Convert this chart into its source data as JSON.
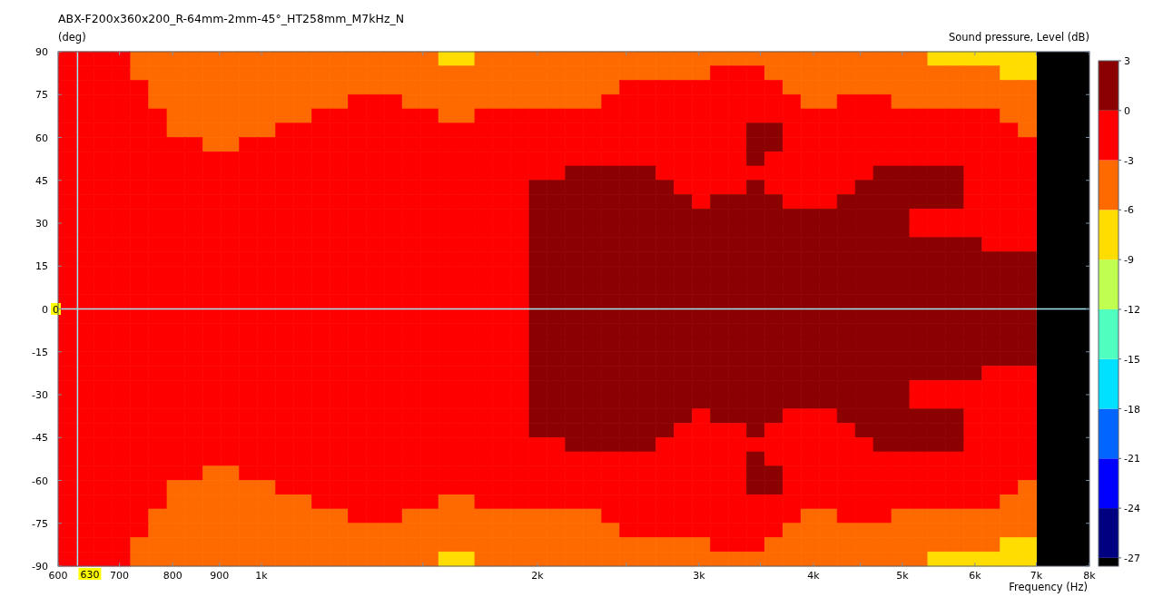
{
  "chart_data": {
    "type": "heatmap",
    "title": "ABX-F200x360x200_R-64mm-2mm-45°_HT258mm_M7kHz_N",
    "xlabel": "Frequency (Hz)",
    "ylabel": "(deg)",
    "clabel": "Sound pressure, Level (dB)",
    "log": "x",
    "xlim": [
      600,
      8000
    ],
    "xticks": [
      600,
      700,
      800,
      900,
      {
        "value": 1000,
        "label": "1k"
      },
      {
        "value": 1500,
        "label": null
      },
      {
        "value": 2000,
        "label": "2k"
      },
      {
        "value": 2500,
        "label": null
      },
      {
        "value": 3000,
        "label": "3k"
      },
      {
        "value": 3500,
        "label": null
      },
      {
        "value": 4000,
        "label": "4k"
      },
      {
        "value": 4500,
        "label": null
      },
      {
        "value": 5000,
        "label": "5k"
      },
      {
        "value": 6000,
        "label": "6k"
      },
      {
        "value": 7000,
        "label": "7k"
      },
      {
        "value": 8000,
        "label": "8k"
      }
    ],
    "ylim": [
      -90,
      90
    ],
    "yticks": [
      -90,
      -75,
      -60,
      -45,
      -30,
      -15,
      0,
      15,
      30,
      45,
      60,
      75,
      90
    ],
    "clim": [
      -27.5,
      3
    ],
    "cticks": [
      -27,
      -24,
      -21,
      -18,
      -15,
      -12,
      -9,
      -6,
      -3,
      0,
      3
    ],
    "ref_lines": [
      {
        "axis": "y",
        "value": 0,
        "label": "0",
        "color": "#9fe8ef"
      },
      {
        "axis": "x",
        "value": 630,
        "label": "630",
        "color": "#9fe8ef"
      }
    ],
    "x": [
      614,
      642,
      672,
      704,
      736,
      771,
      807,
      844,
      883,
      924,
      968,
      1013,
      1060,
      1109,
      1161,
      1215,
      1271,
      1330,
      1392,
      1457,
      1525,
      1596,
      1670,
      1748,
      1829,
      1915,
      2004,
      2097,
      2195,
      2297,
      2404,
      2516,
      2633,
      2755,
      2884,
      3018,
      3158,
      3305,
      3459,
      3620,
      3789,
      3965,
      4150,
      4343,
      4545,
      4757,
      4978,
      5210,
      5453,
      5707,
      5972,
      6250,
      6541,
      6846
    ],
    "cells": [
      [
        -1.5,
        -1.5,
        -1.5,
        -1.5,
        -4.5,
        -4.5,
        -4.5,
        -4.5,
        -4.5,
        -4.5,
        -4.5,
        -4.5,
        -4.5,
        -4.5,
        -4.5,
        -4.5,
        -4.5,
        -4.5,
        -4.5,
        -4.5,
        -4.5,
        -7.5,
        -7.5,
        -4.5,
        -4.5,
        -4.5,
        -4.5,
        -4.5,
        -4.5,
        -4.5,
        -4.5,
        -4.5,
        -4.5,
        -4.5,
        -4.5,
        -4.5,
        -4.5,
        -4.5,
        -4.5,
        -4.5,
        -4.5,
        -4.5,
        -4.5,
        -4.5,
        -4.5,
        -4.5,
        -4.5,
        -4.5,
        -7.5,
        -7.5,
        -7.5,
        -7.5,
        -7.5,
        -7.5
      ],
      [
        -1.5,
        -1.5,
        -1.5,
        -1.5,
        -4.5,
        -4.5,
        -4.5,
        -4.5,
        -4.5,
        -4.5,
        -4.5,
        -4.5,
        -4.5,
        -4.5,
        -4.5,
        -4.5,
        -4.5,
        -4.5,
        -4.5,
        -4.5,
        -4.5,
        -4.5,
        -4.5,
        -4.5,
        -4.5,
        -4.5,
        -4.5,
        -4.5,
        -4.5,
        -4.5,
        -4.5,
        -4.5,
        -4.5,
        -4.5,
        -4.5,
        -4.5,
        -1.5,
        -1.5,
        -1.5,
        -4.5,
        -4.5,
        -4.5,
        -4.5,
        -4.5,
        -4.5,
        -4.5,
        -4.5,
        -4.5,
        -4.5,
        -4.5,
        -4.5,
        -4.5,
        -7.5,
        -7.5
      ],
      [
        -1.5,
        -1.5,
        -1.5,
        -1.5,
        -1.5,
        -4.5,
        -4.5,
        -4.5,
        -4.5,
        -4.5,
        -4.5,
        -4.5,
        -4.5,
        -4.5,
        -4.5,
        -4.5,
        -4.5,
        -4.5,
        -4.5,
        -4.5,
        -4.5,
        -4.5,
        -4.5,
        -4.5,
        -4.5,
        -4.5,
        -4.5,
        -4.5,
        -4.5,
        -4.5,
        -4.5,
        -1.5,
        -1.5,
        -1.5,
        -1.5,
        -1.5,
        -1.5,
        -1.5,
        -1.5,
        -1.5,
        -4.5,
        -4.5,
        -4.5,
        -4.5,
        -4.5,
        -4.5,
        -4.5,
        -4.5,
        -4.5,
        -4.5,
        -4.5,
        -4.5,
        -4.5,
        -4.5
      ],
      [
        -1.5,
        -1.5,
        -1.5,
        -1.5,
        -1.5,
        -4.5,
        -4.5,
        -4.5,
        -4.5,
        -4.5,
        -4.5,
        -4.5,
        -4.5,
        -4.5,
        -4.5,
        -4.5,
        -1.5,
        -1.5,
        -1.5,
        -4.5,
        -4.5,
        -4.5,
        -4.5,
        -4.5,
        -4.5,
        -4.5,
        -4.5,
        -4.5,
        -4.5,
        -4.5,
        -1.5,
        -1.5,
        -1.5,
        -1.5,
        -1.5,
        -1.5,
        -1.5,
        -1.5,
        -1.5,
        -1.5,
        -1.5,
        -4.5,
        -4.5,
        -1.5,
        -1.5,
        -1.5,
        -4.5,
        -4.5,
        -4.5,
        -4.5,
        -4.5,
        -4.5,
        -4.5,
        -4.5
      ],
      [
        -1.5,
        -1.5,
        -1.5,
        -1.5,
        -1.5,
        -1.5,
        -4.5,
        -4.5,
        -4.5,
        -4.5,
        -4.5,
        -4.5,
        -4.5,
        -4.5,
        -1.5,
        -1.5,
        -1.5,
        -1.5,
        -1.5,
        -1.5,
        -1.5,
        -4.5,
        -4.5,
        -1.5,
        -1.5,
        -1.5,
        -1.5,
        -1.5,
        -1.5,
        -1.5,
        -1.5,
        -1.5,
        -1.5,
        -1.5,
        -1.5,
        -1.5,
        -1.5,
        -1.5,
        -1.5,
        -1.5,
        -1.5,
        -1.5,
        -1.5,
        -1.5,
        -1.5,
        -1.5,
        -1.5,
        -1.5,
        -1.5,
        -1.5,
        -1.5,
        -1.5,
        -4.5,
        -4.5
      ],
      [
        -1.5,
        -1.5,
        -1.5,
        -1.5,
        -1.5,
        -1.5,
        -4.5,
        -4.5,
        -4.5,
        -4.5,
        -4.5,
        -4.5,
        -1.5,
        -1.5,
        -1.5,
        -1.5,
        -1.5,
        -1.5,
        -1.5,
        -1.5,
        -1.5,
        -1.5,
        -1.5,
        -1.5,
        -1.5,
        -1.5,
        -1.5,
        -1.5,
        -1.5,
        -1.5,
        -1.5,
        -1.5,
        -1.5,
        -1.5,
        -1.5,
        -1.5,
        -1.5,
        -1.5,
        1.5,
        1.5,
        -1.5,
        -1.5,
        -1.5,
        -1.5,
        -1.5,
        -1.5,
        -1.5,
        -1.5,
        -1.5,
        -1.5,
        -1.5,
        -1.5,
        -1.5,
        -4.5
      ],
      [
        -1.5,
        -1.5,
        -1.5,
        -1.5,
        -1.5,
        -1.5,
        -1.5,
        -1.5,
        -4.5,
        -4.5,
        -1.5,
        -1.5,
        -1.5,
        -1.5,
        -1.5,
        -1.5,
        -1.5,
        -1.5,
        -1.5,
        -1.5,
        -1.5,
        -1.5,
        -1.5,
        -1.5,
        -1.5,
        -1.5,
        -1.5,
        -1.5,
        -1.5,
        -1.5,
        -1.5,
        -1.5,
        -1.5,
        -1.5,
        -1.5,
        -1.5,
        -1.5,
        -1.5,
        1.5,
        1.5,
        -1.5,
        -1.5,
        -1.5,
        -1.5,
        -1.5,
        -1.5,
        -1.5,
        -1.5,
        -1.5,
        -1.5,
        -1.5,
        -1.5,
        -1.5,
        -1.5
      ],
      [
        -1.5,
        -1.5,
        -1.5,
        -1.5,
        -1.5,
        -1.5,
        -1.5,
        -1.5,
        -1.5,
        -1.5,
        -1.5,
        -1.5,
        -1.5,
        -1.5,
        -1.5,
        -1.5,
        -1.5,
        -1.5,
        -1.5,
        -1.5,
        -1.5,
        -1.5,
        -1.5,
        -1.5,
        -1.5,
        -1.5,
        -1.5,
        -1.5,
        -1.5,
        -1.5,
        -1.5,
        -1.5,
        -1.5,
        -1.5,
        -1.5,
        -1.5,
        -1.5,
        -1.5,
        1.5,
        -1.5,
        -1.5,
        -1.5,
        -1.5,
        -1.5,
        -1.5,
        -1.5,
        -1.5,
        -1.5,
        -1.5,
        -1.5,
        -1.5,
        -1.5,
        -1.5,
        -1.5
      ],
      [
        -1.5,
        -1.5,
        -1.5,
        -1.5,
        -1.5,
        -1.5,
        -1.5,
        -1.5,
        -1.5,
        -1.5,
        -1.5,
        -1.5,
        -1.5,
        -1.5,
        -1.5,
        -1.5,
        -1.5,
        -1.5,
        -1.5,
        -1.5,
        -1.5,
        -1.5,
        -1.5,
        -1.5,
        -1.5,
        -1.5,
        -1.5,
        -1.5,
        1.5,
        1.5,
        1.5,
        1.5,
        1.5,
        -1.5,
        -1.5,
        -1.5,
        -1.5,
        -1.5,
        -1.5,
        -1.5,
        -1.5,
        -1.5,
        -1.5,
        -1.5,
        -1.5,
        1.5,
        1.5,
        1.5,
        1.5,
        1.5,
        -1.5,
        -1.5,
        -1.5,
        -1.5
      ],
      [
        -1.5,
        -1.5,
        -1.5,
        -1.5,
        -1.5,
        -1.5,
        -1.5,
        -1.5,
        -1.5,
        -1.5,
        -1.5,
        -1.5,
        -1.5,
        -1.5,
        -1.5,
        -1.5,
        -1.5,
        -1.5,
        -1.5,
        -1.5,
        -1.5,
        -1.5,
        -1.5,
        -1.5,
        -1.5,
        -1.5,
        1.5,
        1.5,
        1.5,
        1.5,
        1.5,
        1.5,
        1.5,
        1.5,
        -1.5,
        -1.5,
        -1.5,
        -1.5,
        1.5,
        -1.5,
        -1.5,
        -1.5,
        -1.5,
        -1.5,
        1.5,
        1.5,
        1.5,
        1.5,
        1.5,
        1.5,
        -1.5,
        -1.5,
        -1.5,
        -1.5
      ],
      [
        -1.5,
        -1.5,
        -1.5,
        -1.5,
        -1.5,
        -1.5,
        -1.5,
        -1.5,
        -1.5,
        -1.5,
        -1.5,
        -1.5,
        -1.5,
        -1.5,
        -1.5,
        -1.5,
        -1.5,
        -1.5,
        -1.5,
        -1.5,
        -1.5,
        -1.5,
        -1.5,
        -1.5,
        -1.5,
        -1.5,
        1.5,
        1.5,
        1.5,
        1.5,
        1.5,
        1.5,
        1.5,
        1.5,
        1.5,
        -1.5,
        1.5,
        1.5,
        1.5,
        1.5,
        -1.5,
        -1.5,
        -1.5,
        1.5,
        1.5,
        1.5,
        1.5,
        1.5,
        1.5,
        1.5,
        -1.5,
        -1.5,
        -1.5,
        -1.5
      ],
      [
        -1.5,
        -1.5,
        -1.5,
        -1.5,
        -1.5,
        -1.5,
        -1.5,
        -1.5,
        -1.5,
        -1.5,
        -1.5,
        -1.5,
        -1.5,
        -1.5,
        -1.5,
        -1.5,
        -1.5,
        -1.5,
        -1.5,
        -1.5,
        -1.5,
        -1.5,
        -1.5,
        -1.5,
        -1.5,
        -1.5,
        1.5,
        1.5,
        1.5,
        1.5,
        1.5,
        1.5,
        1.5,
        1.5,
        1.5,
        1.5,
        1.5,
        1.5,
        1.5,
        1.5,
        1.5,
        1.5,
        1.5,
        1.5,
        1.5,
        1.5,
        1.5,
        -1.5,
        -1.5,
        -1.5,
        -1.5,
        -1.5,
        -1.5,
        -1.5
      ],
      [
        -1.5,
        -1.5,
        -1.5,
        -1.5,
        -1.5,
        -1.5,
        -1.5,
        -1.5,
        -1.5,
        -1.5,
        -1.5,
        -1.5,
        -1.5,
        -1.5,
        -1.5,
        -1.5,
        -1.5,
        -1.5,
        -1.5,
        -1.5,
        -1.5,
        -1.5,
        -1.5,
        -1.5,
        -1.5,
        -1.5,
        1.5,
        1.5,
        1.5,
        1.5,
        1.5,
        1.5,
        1.5,
        1.5,
        1.5,
        1.5,
        1.5,
        1.5,
        1.5,
        1.5,
        1.5,
        1.5,
        1.5,
        1.5,
        1.5,
        1.5,
        1.5,
        -1.5,
        -1.5,
        -1.5,
        -1.5,
        -1.5,
        -1.5,
        -1.5
      ],
      [
        -1.5,
        -1.5,
        -1.5,
        -1.5,
        -1.5,
        -1.5,
        -1.5,
        -1.5,
        -1.5,
        -1.5,
        -1.5,
        -1.5,
        -1.5,
        -1.5,
        -1.5,
        -1.5,
        -1.5,
        -1.5,
        -1.5,
        -1.5,
        -1.5,
        -1.5,
        -1.5,
        -1.5,
        -1.5,
        -1.5,
        1.5,
        1.5,
        1.5,
        1.5,
        1.5,
        1.5,
        1.5,
        1.5,
        1.5,
        1.5,
        1.5,
        1.5,
        1.5,
        1.5,
        1.5,
        1.5,
        1.5,
        1.5,
        1.5,
        1.5,
        1.5,
        1.5,
        1.5,
        1.5,
        1.5,
        -1.5,
        -1.5,
        -1.5
      ],
      [
        -1.5,
        -1.5,
        -1.5,
        -1.5,
        -1.5,
        -1.5,
        -1.5,
        -1.5,
        -1.5,
        -1.5,
        -1.5,
        -1.5,
        -1.5,
        -1.5,
        -1.5,
        -1.5,
        -1.5,
        -1.5,
        -1.5,
        -1.5,
        -1.5,
        -1.5,
        -1.5,
        -1.5,
        -1.5,
        -1.5,
        1.5,
        1.5,
        1.5,
        1.5,
        1.5,
        1.5,
        1.5,
        1.5,
        1.5,
        1.5,
        1.5,
        1.5,
        1.5,
        1.5,
        1.5,
        1.5,
        1.5,
        1.5,
        1.5,
        1.5,
        1.5,
        1.5,
        1.5,
        1.5,
        1.5,
        1.5,
        1.5,
        1.5
      ],
      [
        -1.5,
        -1.5,
        -1.5,
        -1.5,
        -1.5,
        -1.5,
        -1.5,
        -1.5,
        -1.5,
        -1.5,
        -1.5,
        -1.5,
        -1.5,
        -1.5,
        -1.5,
        -1.5,
        -1.5,
        -1.5,
        -1.5,
        -1.5,
        -1.5,
        -1.5,
        -1.5,
        -1.5,
        -1.5,
        -1.5,
        1.5,
        1.5,
        1.5,
        1.5,
        1.5,
        1.5,
        1.5,
        1.5,
        1.5,
        1.5,
        1.5,
        1.5,
        1.5,
        1.5,
        1.5,
        1.5,
        1.5,
        1.5,
        1.5,
        1.5,
        1.5,
        1.5,
        1.5,
        1.5,
        1.5,
        1.5,
        1.5,
        1.5
      ],
      [
        -1.5,
        -1.5,
        -1.5,
        -1.5,
        -1.5,
        -1.5,
        -1.5,
        -1.5,
        -1.5,
        -1.5,
        -1.5,
        -1.5,
        -1.5,
        -1.5,
        -1.5,
        -1.5,
        -1.5,
        -1.5,
        -1.5,
        -1.5,
        -1.5,
        -1.5,
        -1.5,
        -1.5,
        -1.5,
        -1.5,
        1.5,
        1.5,
        1.5,
        1.5,
        1.5,
        1.5,
        1.5,
        1.5,
        1.5,
        1.5,
        1.5,
        1.5,
        1.5,
        1.5,
        1.5,
        1.5,
        1.5,
        1.5,
        1.5,
        1.5,
        1.5,
        1.5,
        1.5,
        1.5,
        1.5,
        1.5,
        1.5,
        1.5
      ],
      [
        -1.5,
        -1.5,
        -1.5,
        -1.5,
        -1.5,
        -1.5,
        -1.5,
        -1.5,
        -1.5,
        -1.5,
        -1.5,
        -1.5,
        -1.5,
        -1.5,
        -1.5,
        -1.5,
        -1.5,
        -1.5,
        -1.5,
        -1.5,
        -1.5,
        -1.5,
        -1.5,
        -1.5,
        -1.5,
        -1.5,
        1.5,
        1.5,
        1.5,
        1.5,
        1.5,
        1.5,
        1.5,
        1.5,
        1.5,
        1.5,
        1.5,
        1.5,
        1.5,
        1.5,
        1.5,
        1.5,
        1.5,
        1.5,
        1.5,
        1.5,
        1.5,
        1.5,
        1.5,
        1.5,
        1.5,
        1.5,
        1.5,
        1.5
      ],
      [
        -1.5,
        -1.5,
        -1.5,
        -1.5,
        -1.5,
        -1.5,
        -1.5,
        -1.5,
        -1.5,
        -1.5,
        -1.5,
        -1.5,
        -1.5,
        -1.5,
        -1.5,
        -1.5,
        -1.5,
        -1.5,
        -1.5,
        -1.5,
        -1.5,
        -1.5,
        -1.5,
        -1.5,
        -1.5,
        -1.5,
        1.5,
        1.5,
        1.5,
        1.5,
        1.5,
        1.5,
        1.5,
        1.5,
        1.5,
        1.5,
        1.5,
        1.5,
        1.5,
        1.5,
        1.5,
        1.5,
        1.5,
        1.5,
        1.5,
        1.5,
        1.5,
        1.5,
        1.5,
        1.5,
        1.5,
        1.5,
        1.5,
        1.5
      ],
      [
        -1.5,
        -1.5,
        -1.5,
        -1.5,
        -1.5,
        -1.5,
        -1.5,
        -1.5,
        -1.5,
        -1.5,
        -1.5,
        -1.5,
        -1.5,
        -1.5,
        -1.5,
        -1.5,
        -1.5,
        -1.5,
        -1.5,
        -1.5,
        -1.5,
        -1.5,
        -1.5,
        -1.5,
        -1.5,
        -1.5,
        1.5,
        1.5,
        1.5,
        1.5,
        1.5,
        1.5,
        1.5,
        1.5,
        1.5,
        1.5,
        1.5,
        1.5,
        1.5,
        1.5,
        1.5,
        1.5,
        1.5,
        1.5,
        1.5,
        1.5,
        1.5,
        1.5,
        1.5,
        1.5,
        1.5,
        1.5,
        1.5,
        1.5
      ],
      [
        -1.5,
        -1.5,
        -1.5,
        -1.5,
        -1.5,
        -1.5,
        -1.5,
        -1.5,
        -1.5,
        -1.5,
        -1.5,
        -1.5,
        -1.5,
        -1.5,
        -1.5,
        -1.5,
        -1.5,
        -1.5,
        -1.5,
        -1.5,
        -1.5,
        -1.5,
        -1.5,
        -1.5,
        -1.5,
        -1.5,
        1.5,
        1.5,
        1.5,
        1.5,
        1.5,
        1.5,
        1.5,
        1.5,
        1.5,
        1.5,
        1.5,
        1.5,
        1.5,
        1.5,
        1.5,
        1.5,
        1.5,
        1.5,
        1.5,
        1.5,
        1.5,
        1.5,
        1.5,
        1.5,
        1.5,
        1.5,
        1.5,
        1.5
      ],
      [
        -1.5,
        -1.5,
        -1.5,
        -1.5,
        -1.5,
        -1.5,
        -1.5,
        -1.5,
        -1.5,
        -1.5,
        -1.5,
        -1.5,
        -1.5,
        -1.5,
        -1.5,
        -1.5,
        -1.5,
        -1.5,
        -1.5,
        -1.5,
        -1.5,
        -1.5,
        -1.5,
        -1.5,
        -1.5,
        -1.5,
        1.5,
        1.5,
        1.5,
        1.5,
        1.5,
        1.5,
        1.5,
        1.5,
        1.5,
        1.5,
        1.5,
        1.5,
        1.5,
        1.5,
        1.5,
        1.5,
        1.5,
        1.5,
        1.5,
        1.5,
        1.5,
        1.5,
        1.5,
        1.5,
        1.5,
        1.5,
        1.5,
        1.5
      ],
      [
        -1.5,
        -1.5,
        -1.5,
        -1.5,
        -1.5,
        -1.5,
        -1.5,
        -1.5,
        -1.5,
        -1.5,
        -1.5,
        -1.5,
        -1.5,
        -1.5,
        -1.5,
        -1.5,
        -1.5,
        -1.5,
        -1.5,
        -1.5,
        -1.5,
        -1.5,
        -1.5,
        -1.5,
        -1.5,
        -1.5,
        1.5,
        1.5,
        1.5,
        1.5,
        1.5,
        1.5,
        1.5,
        1.5,
        1.5,
        1.5,
        1.5,
        1.5,
        1.5,
        1.5,
        1.5,
        1.5,
        1.5,
        1.5,
        1.5,
        1.5,
        1.5,
        1.5,
        1.5,
        1.5,
        1.5,
        -1.5,
        -1.5,
        -1.5
      ],
      [
        -1.5,
        -1.5,
        -1.5,
        -1.5,
        -1.5,
        -1.5,
        -1.5,
        -1.5,
        -1.5,
        -1.5,
        -1.5,
        -1.5,
        -1.5,
        -1.5,
        -1.5,
        -1.5,
        -1.5,
        -1.5,
        -1.5,
        -1.5,
        -1.5,
        -1.5,
        -1.5,
        -1.5,
        -1.5,
        -1.5,
        1.5,
        1.5,
        1.5,
        1.5,
        1.5,
        1.5,
        1.5,
        1.5,
        1.5,
        1.5,
        1.5,
        1.5,
        1.5,
        1.5,
        1.5,
        1.5,
        1.5,
        1.5,
        1.5,
        1.5,
        1.5,
        -1.5,
        -1.5,
        -1.5,
        -1.5,
        -1.5,
        -1.5,
        -1.5
      ],
      [
        -1.5,
        -1.5,
        -1.5,
        -1.5,
        -1.5,
        -1.5,
        -1.5,
        -1.5,
        -1.5,
        -1.5,
        -1.5,
        -1.5,
        -1.5,
        -1.5,
        -1.5,
        -1.5,
        -1.5,
        -1.5,
        -1.5,
        -1.5,
        -1.5,
        -1.5,
        -1.5,
        -1.5,
        -1.5,
        -1.5,
        1.5,
        1.5,
        1.5,
        1.5,
        1.5,
        1.5,
        1.5,
        1.5,
        1.5,
        1.5,
        1.5,
        1.5,
        1.5,
        1.5,
        1.5,
        1.5,
        1.5,
        1.5,
        1.5,
        1.5,
        1.5,
        -1.5,
        -1.5,
        -1.5,
        -1.5,
        -1.5,
        -1.5,
        -1.5
      ],
      [
        -1.5,
        -1.5,
        -1.5,
        -1.5,
        -1.5,
        -1.5,
        -1.5,
        -1.5,
        -1.5,
        -1.5,
        -1.5,
        -1.5,
        -1.5,
        -1.5,
        -1.5,
        -1.5,
        -1.5,
        -1.5,
        -1.5,
        -1.5,
        -1.5,
        -1.5,
        -1.5,
        -1.5,
        -1.5,
        -1.5,
        1.5,
        1.5,
        1.5,
        1.5,
        1.5,
        1.5,
        1.5,
        1.5,
        1.5,
        -1.5,
        1.5,
        1.5,
        1.5,
        1.5,
        -1.5,
        -1.5,
        -1.5,
        1.5,
        1.5,
        1.5,
        1.5,
        1.5,
        1.5,
        1.5,
        -1.5,
        -1.5,
        -1.5,
        -1.5
      ],
      [
        -1.5,
        -1.5,
        -1.5,
        -1.5,
        -1.5,
        -1.5,
        -1.5,
        -1.5,
        -1.5,
        -1.5,
        -1.5,
        -1.5,
        -1.5,
        -1.5,
        -1.5,
        -1.5,
        -1.5,
        -1.5,
        -1.5,
        -1.5,
        -1.5,
        -1.5,
        -1.5,
        -1.5,
        -1.5,
        -1.5,
        1.5,
        1.5,
        1.5,
        1.5,
        1.5,
        1.5,
        1.5,
        1.5,
        -1.5,
        -1.5,
        -1.5,
        -1.5,
        1.5,
        -1.5,
        -1.5,
        -1.5,
        -1.5,
        -1.5,
        1.5,
        1.5,
        1.5,
        1.5,
        1.5,
        1.5,
        -1.5,
        -1.5,
        -1.5,
        -1.5
      ],
      [
        -1.5,
        -1.5,
        -1.5,
        -1.5,
        -1.5,
        -1.5,
        -1.5,
        -1.5,
        -1.5,
        -1.5,
        -1.5,
        -1.5,
        -1.5,
        -1.5,
        -1.5,
        -1.5,
        -1.5,
        -1.5,
        -1.5,
        -1.5,
        -1.5,
        -1.5,
        -1.5,
        -1.5,
        -1.5,
        -1.5,
        -1.5,
        -1.5,
        1.5,
        1.5,
        1.5,
        1.5,
        1.5,
        -1.5,
        -1.5,
        -1.5,
        -1.5,
        -1.5,
        -1.5,
        -1.5,
        -1.5,
        -1.5,
        -1.5,
        -1.5,
        -1.5,
        1.5,
        1.5,
        1.5,
        1.5,
        1.5,
        -1.5,
        -1.5,
        -1.5,
        -1.5
      ],
      [
        -1.5,
        -1.5,
        -1.5,
        -1.5,
        -1.5,
        -1.5,
        -1.5,
        -1.5,
        -1.5,
        -1.5,
        -1.5,
        -1.5,
        -1.5,
        -1.5,
        -1.5,
        -1.5,
        -1.5,
        -1.5,
        -1.5,
        -1.5,
        -1.5,
        -1.5,
        -1.5,
        -1.5,
        -1.5,
        -1.5,
        -1.5,
        -1.5,
        -1.5,
        -1.5,
        -1.5,
        -1.5,
        -1.5,
        -1.5,
        -1.5,
        -1.5,
        -1.5,
        -1.5,
        1.5,
        -1.5,
        -1.5,
        -1.5,
        -1.5,
        -1.5,
        -1.5,
        -1.5,
        -1.5,
        -1.5,
        -1.5,
        -1.5,
        -1.5,
        -1.5,
        -1.5,
        -1.5
      ],
      [
        -1.5,
        -1.5,
        -1.5,
        -1.5,
        -1.5,
        -1.5,
        -1.5,
        -1.5,
        -4.5,
        -4.5,
        -1.5,
        -1.5,
        -1.5,
        -1.5,
        -1.5,
        -1.5,
        -1.5,
        -1.5,
        -1.5,
        -1.5,
        -1.5,
        -1.5,
        -1.5,
        -1.5,
        -1.5,
        -1.5,
        -1.5,
        -1.5,
        -1.5,
        -1.5,
        -1.5,
        -1.5,
        -1.5,
        -1.5,
        -1.5,
        -1.5,
        -1.5,
        -1.5,
        1.5,
        1.5,
        -1.5,
        -1.5,
        -1.5,
        -1.5,
        -1.5,
        -1.5,
        -1.5,
        -1.5,
        -1.5,
        -1.5,
        -1.5,
        -1.5,
        -1.5,
        -1.5
      ],
      [
        -1.5,
        -1.5,
        -1.5,
        -1.5,
        -1.5,
        -1.5,
        -4.5,
        -4.5,
        -4.5,
        -4.5,
        -4.5,
        -4.5,
        -1.5,
        -1.5,
        -1.5,
        -1.5,
        -1.5,
        -1.5,
        -1.5,
        -1.5,
        -1.5,
        -1.5,
        -1.5,
        -1.5,
        -1.5,
        -1.5,
        -1.5,
        -1.5,
        -1.5,
        -1.5,
        -1.5,
        -1.5,
        -1.5,
        -1.5,
        -1.5,
        -1.5,
        -1.5,
        -1.5,
        1.5,
        1.5,
        -1.5,
        -1.5,
        -1.5,
        -1.5,
        -1.5,
        -1.5,
        -1.5,
        -1.5,
        -1.5,
        -1.5,
        -1.5,
        -1.5,
        -1.5,
        -4.5
      ],
      [
        -1.5,
        -1.5,
        -1.5,
        -1.5,
        -1.5,
        -1.5,
        -4.5,
        -4.5,
        -4.5,
        -4.5,
        -4.5,
        -4.5,
        -4.5,
        -4.5,
        -1.5,
        -1.5,
        -1.5,
        -1.5,
        -1.5,
        -1.5,
        -1.5,
        -4.5,
        -4.5,
        -1.5,
        -1.5,
        -1.5,
        -1.5,
        -1.5,
        -1.5,
        -1.5,
        -1.5,
        -1.5,
        -1.5,
        -1.5,
        -1.5,
        -1.5,
        -1.5,
        -1.5,
        -1.5,
        -1.5,
        -1.5,
        -1.5,
        -1.5,
        -1.5,
        -1.5,
        -1.5,
        -1.5,
        -1.5,
        -1.5,
        -1.5,
        -1.5,
        -1.5,
        -4.5,
        -4.5
      ],
      [
        -1.5,
        -1.5,
        -1.5,
        -1.5,
        -1.5,
        -4.5,
        -4.5,
        -4.5,
        -4.5,
        -4.5,
        -4.5,
        -4.5,
        -4.5,
        -4.5,
        -4.5,
        -4.5,
        -1.5,
        -1.5,
        -1.5,
        -4.5,
        -4.5,
        -4.5,
        -4.5,
        -4.5,
        -4.5,
        -4.5,
        -4.5,
        -4.5,
        -4.5,
        -4.5,
        -1.5,
        -1.5,
        -1.5,
        -1.5,
        -1.5,
        -1.5,
        -1.5,
        -1.5,
        -1.5,
        -1.5,
        -1.5,
        -4.5,
        -4.5,
        -1.5,
        -1.5,
        -1.5,
        -4.5,
        -4.5,
        -4.5,
        -4.5,
        -4.5,
        -4.5,
        -4.5,
        -4.5
      ],
      [
        -1.5,
        -1.5,
        -1.5,
        -1.5,
        -1.5,
        -4.5,
        -4.5,
        -4.5,
        -4.5,
        -4.5,
        -4.5,
        -4.5,
        -4.5,
        -4.5,
        -4.5,
        -4.5,
        -4.5,
        -4.5,
        -4.5,
        -4.5,
        -4.5,
        -4.5,
        -4.5,
        -4.5,
        -4.5,
        -4.5,
        -4.5,
        -4.5,
        -4.5,
        -4.5,
        -4.5,
        -1.5,
        -1.5,
        -1.5,
        -1.5,
        -1.5,
        -1.5,
        -1.5,
        -1.5,
        -1.5,
        -4.5,
        -4.5,
        -4.5,
        -4.5,
        -4.5,
        -4.5,
        -4.5,
        -4.5,
        -4.5,
        -4.5,
        -4.5,
        -4.5,
        -4.5,
        -4.5
      ],
      [
        -1.5,
        -1.5,
        -1.5,
        -1.5,
        -4.5,
        -4.5,
        -4.5,
        -4.5,
        -4.5,
        -4.5,
        -4.5,
        -4.5,
        -4.5,
        -4.5,
        -4.5,
        -4.5,
        -4.5,
        -4.5,
        -4.5,
        -4.5,
        -4.5,
        -4.5,
        -4.5,
        -4.5,
        -4.5,
        -4.5,
        -4.5,
        -4.5,
        -4.5,
        -4.5,
        -4.5,
        -4.5,
        -4.5,
        -4.5,
        -4.5,
        -4.5,
        -1.5,
        -1.5,
        -1.5,
        -4.5,
        -4.5,
        -4.5,
        -4.5,
        -4.5,
        -4.5,
        -4.5,
        -4.5,
        -4.5,
        -4.5,
        -4.5,
        -4.5,
        -4.5,
        -7.5,
        -7.5
      ],
      [
        -1.5,
        -1.5,
        -1.5,
        -1.5,
        -4.5,
        -4.5,
        -4.5,
        -4.5,
        -4.5,
        -4.5,
        -4.5,
        -4.5,
        -4.5,
        -4.5,
        -4.5,
        -4.5,
        -4.5,
        -4.5,
        -4.5,
        -4.5,
        -4.5,
        -7.5,
        -7.5,
        -4.5,
        -4.5,
        -4.5,
        -4.5,
        -4.5,
        -4.5,
        -4.5,
        -4.5,
        -4.5,
        -4.5,
        -4.5,
        -4.5,
        -4.5,
        -4.5,
        -4.5,
        -4.5,
        -4.5,
        -4.5,
        -4.5,
        -4.5,
        -4.5,
        -4.5,
        -4.5,
        -4.5,
        -4.5,
        -7.5,
        -7.5,
        -7.5,
        -7.5,
        -7.5,
        -7.5
      ]
    ]
  }
}
